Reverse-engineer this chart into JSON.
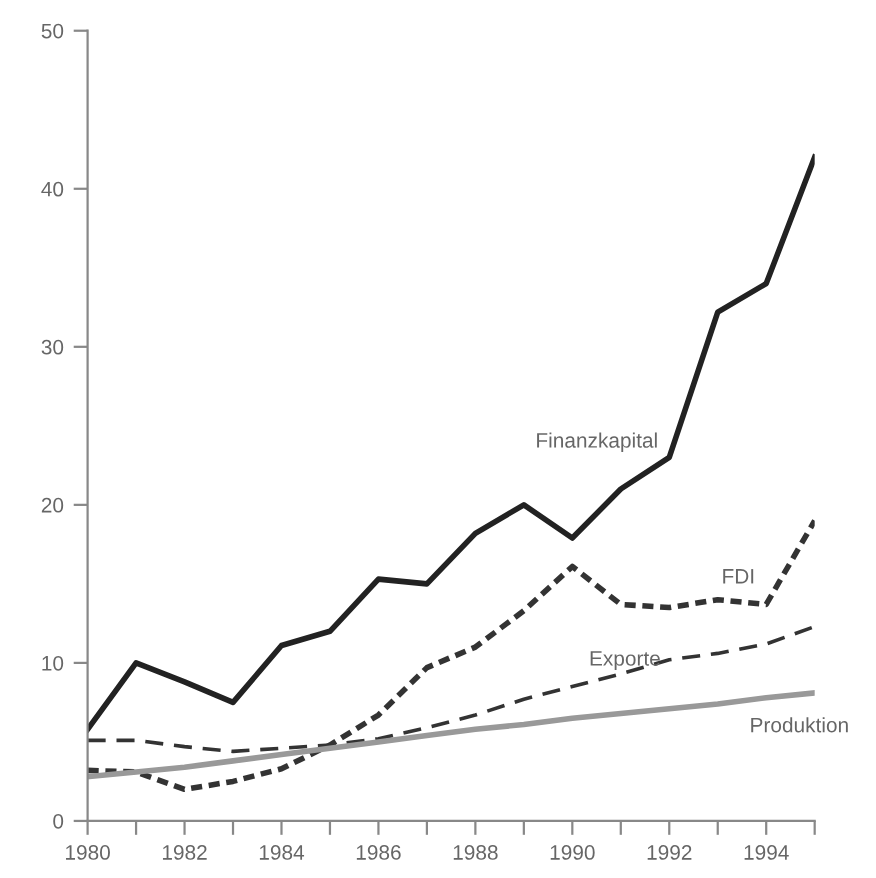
{
  "chart_data": {
    "type": "line",
    "x": [
      1980,
      1981,
      1982,
      1983,
      1984,
      1985,
      1986,
      1987,
      1988,
      1989,
      1990,
      1991,
      1992,
      1993,
      1994,
      1995
    ],
    "series": [
      {
        "name": "Finanzkapital",
        "color": "#222222",
        "line_style": "solid",
        "values": [
          5.8,
          10,
          8.8,
          7.5,
          11.1,
          12,
          15.3,
          15,
          18.2,
          20,
          17.9,
          21,
          23,
          32.2,
          34,
          42
        ]
      },
      {
        "name": "FDI",
        "color": "#333333",
        "line_style": "dotted",
        "values": [
          3.2,
          3.1,
          2.0,
          2.5,
          3.3,
          4.8,
          6.7,
          9.7,
          11,
          13.3,
          16.1,
          13.7,
          13.5,
          14,
          13.7,
          19
        ]
      },
      {
        "name": "Exporte",
        "color": "#333333",
        "line_style": "dashed",
        "values": [
          5.1,
          5.1,
          4.7,
          4.4,
          4.6,
          4.8,
          5.2,
          5.9,
          6.7,
          7.7,
          8.5,
          9.3,
          10.2,
          10.6,
          11.2,
          12.3
        ]
      },
      {
        "name": "Produktion",
        "color": "#999999",
        "line_style": "solid",
        "values": [
          2.8,
          3.1,
          3.4,
          3.8,
          4.2,
          4.6,
          5.0,
          5.4,
          5.8,
          6.1,
          6.5,
          6.8,
          7.1,
          7.4,
          7.8,
          8.1
        ]
      }
    ],
    "xlim": [
      1980,
      1995
    ],
    "xticks": [
      1980,
      {
        "value": 1981,
        "label": null
      },
      1982,
      {
        "value": 1983,
        "label": null
      },
      1984,
      {
        "value": 1985,
        "label": null
      },
      1986,
      {
        "value": 1987,
        "label": null
      },
      1988,
      {
        "value": 1989,
        "label": null
      },
      1990,
      {
        "value": 1991,
        "label": null
      },
      1992,
      {
        "value": 1993,
        "label": null
      },
      1994,
      {
        "value": 1995,
        "label": null
      }
    ],
    "ylim": [
      0,
      50
    ],
    "yticks": [
      0,
      10,
      20,
      30,
      40,
      50
    ],
    "grid": false,
    "legend": false,
    "marker": "none"
  }
}
